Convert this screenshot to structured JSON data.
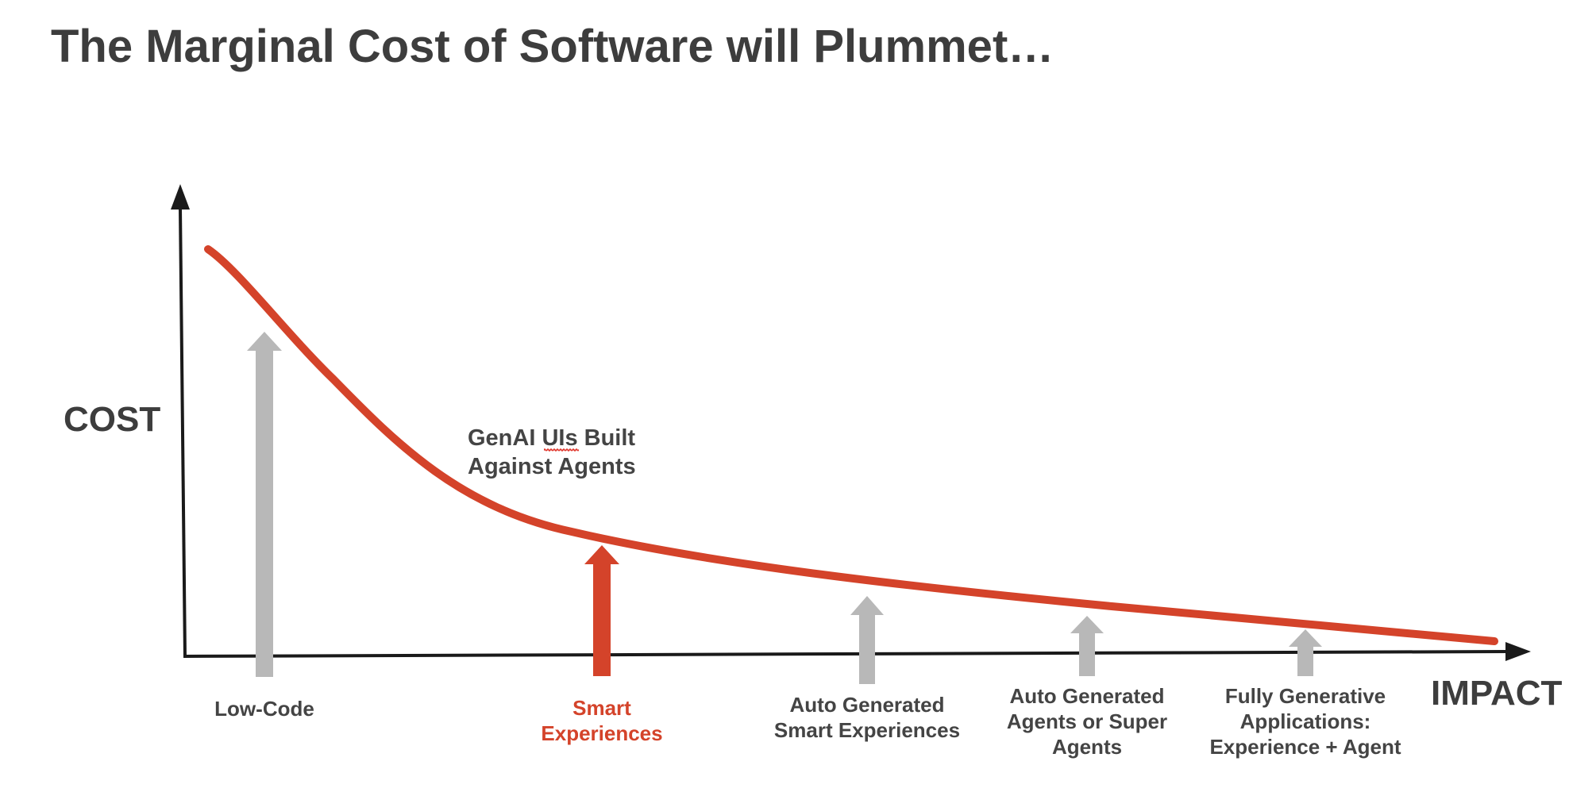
{
  "title": "The Marginal Cost of Software will Plummet…",
  "axes": {
    "y_label": "COST",
    "x_label": "IMPACT"
  },
  "colors": {
    "curve": "#d4432a",
    "accent": "#d4432a",
    "stage_gray": "#b8b8b8",
    "axis": "#1a1a1a",
    "text": "#3d3d3d"
  },
  "annotation": {
    "lines": [
      "GenAI UIs Built",
      "Against Agents"
    ],
    "misspelled_word": "UIs"
  },
  "stages": [
    {
      "id": "low-code",
      "lines": [
        "Low-Code"
      ],
      "highlight": false
    },
    {
      "id": "smart-experiences",
      "lines": [
        "Smart",
        "Experiences"
      ],
      "highlight": true
    },
    {
      "id": "auto-generated-smart-experiences",
      "lines": [
        "Auto Generated",
        "Smart Experiences"
      ],
      "highlight": false
    },
    {
      "id": "auto-generated-agents",
      "lines": [
        "Auto Generated",
        "Agents or Super",
        "Agents"
      ],
      "highlight": false
    },
    {
      "id": "fully-generative-applications",
      "lines": [
        "Fully Generative",
        "Applications:",
        "Experience + Agent"
      ],
      "highlight": false
    }
  ]
}
